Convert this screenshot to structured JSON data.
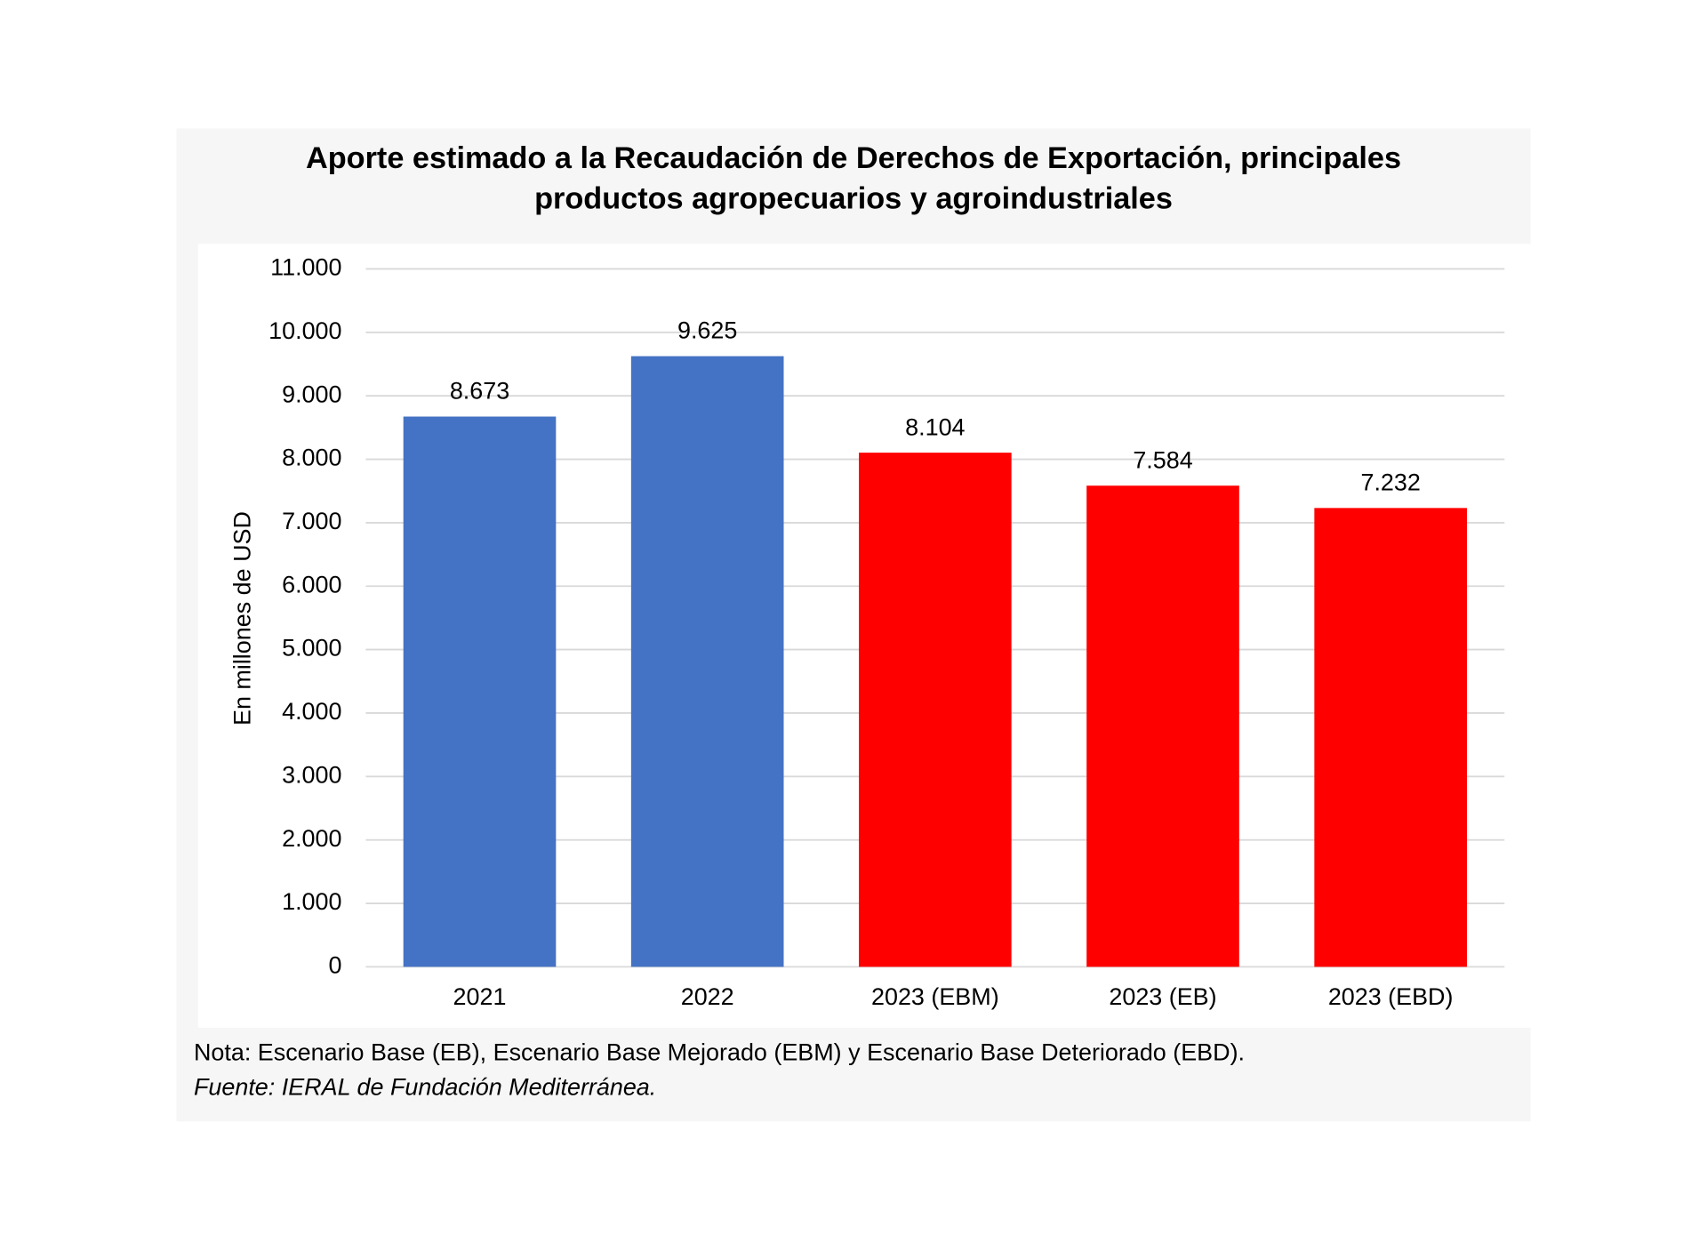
{
  "chart_data": {
    "type": "bar",
    "title": [
      "Aporte estimado a la Recaudación de Derechos de Exportación, principales",
      "productos agropecuarios y agroindustriales"
    ],
    "y_label": "En millones de USD",
    "categories": [
      "2021",
      "2022",
      "2023 (EBM)",
      "2023 (EB)",
      "2023 (EBD)"
    ],
    "values": [
      8673,
      9625,
      8104,
      7584,
      7232
    ],
    "value_labels": [
      "8.673",
      "9.625",
      "8.104",
      "7.584",
      "7.232"
    ],
    "colors": [
      "#4472c4",
      "#4472c4",
      "#ff0000",
      "#ff0000",
      "#ff0000"
    ],
    "ylim": [
      0,
      11000
    ],
    "yticks": [
      0,
      {
        "value": 1000,
        "label": "1.000"
      },
      {
        "value": 2000,
        "label": "2.000"
      },
      {
        "value": 3000,
        "label": "3.000"
      },
      {
        "value": 4000,
        "label": "4.000"
      },
      {
        "value": 5000,
        "label": "5.000"
      },
      {
        "value": 6000,
        "label": "6.000"
      },
      {
        "value": 7000,
        "label": "7.000"
      },
      {
        "value": 8000,
        "label": "8.000"
      },
      {
        "value": 9000,
        "label": "9.000"
      },
      {
        "value": 10000,
        "label": "10.000"
      },
      {
        "value": 11000,
        "label": "11.000"
      }
    ],
    "grid": true,
    "note": "Nota: Escenario Base (EB), Escenario Base Mejorado (EBM) y Escenario Base Deteriorado (EBD).",
    "source": "Fuente: IERAL de Fundación Mediterránea."
  }
}
